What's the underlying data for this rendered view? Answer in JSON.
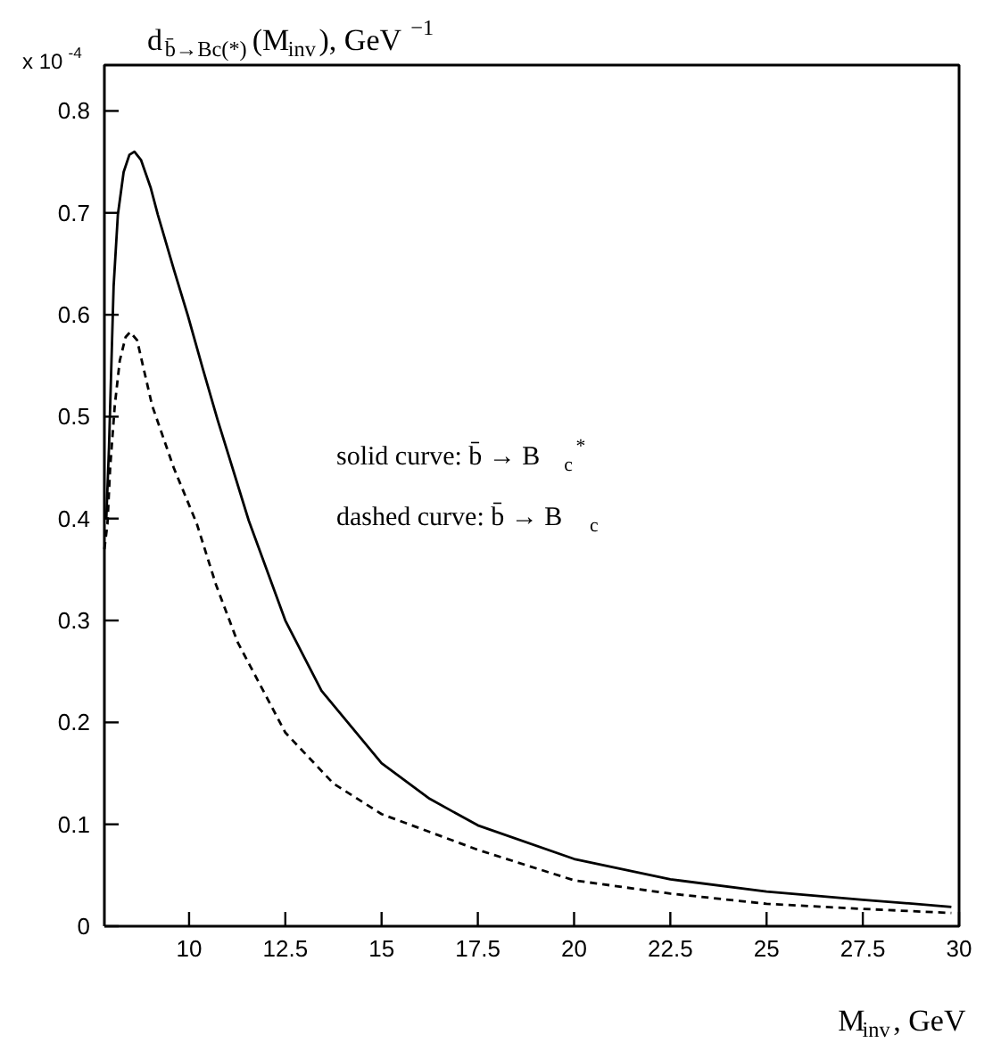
{
  "chart_data": {
    "type": "line",
    "title": "d$_{b̄→Bc(*)}$(M$_{inv}$), GeV$^{−1}$",
    "xlabel": "M$_{inv}$, GeV",
    "annotations": [
      "x 10$^{-4}$",
      "solid curve: b̄ → B$_{c}$$^{*}$",
      "dashed curve: b̄ → B$_{c}$"
    ],
    "xlim": [
      7.8,
      30
    ],
    "ylim": [
      0,
      0.845
    ],
    "xticks": [
      10,
      12.5,
      15,
      17.5,
      20,
      22.5,
      25,
      27.5,
      30
    ],
    "yticks": [
      0,
      0.1,
      0.2,
      0.3,
      0.4,
      0.5,
      0.6,
      0.7,
      0.8
    ],
    "grid": false,
    "marker": "none",
    "series": [
      {
        "color": "#000000",
        "line_style": "solid",
        "x": [
          7.85,
          7.92,
          8.04,
          8.15,
          8.3,
          8.45,
          8.58,
          8.75,
          9.0,
          9.19,
          9.6,
          9.97,
          10.35,
          10.74,
          11.15,
          11.55,
          12.5,
          13.44,
          15,
          16.25,
          17.5,
          20,
          22.5,
          25,
          27.5,
          29.8
        ],
        "values": [
          0.4,
          0.47,
          0.628,
          0.698,
          0.74,
          0.757,
          0.76,
          0.752,
          0.725,
          0.698,
          0.645,
          0.599,
          0.548,
          0.497,
          0.447,
          0.398,
          0.3,
          0.231,
          0.16,
          0.125,
          0.099,
          0.066,
          0.046,
          0.034,
          0.026,
          0.019
        ]
      },
      {
        "color": "#000000",
        "line_style": "dashed",
        "x": [
          7.8,
          7.88,
          7.95,
          8.07,
          8.2,
          8.35,
          8.47,
          8.65,
          9.04,
          9.6,
          10.2,
          10.7,
          11.27,
          12.5,
          13.75,
          15,
          17.5,
          20,
          22.5,
          25,
          27.5,
          29.8
        ],
        "values": [
          0.37,
          0.395,
          0.45,
          0.511,
          0.555,
          0.578,
          0.583,
          0.575,
          0.511,
          0.45,
          0.395,
          0.335,
          0.278,
          0.19,
          0.14,
          0.11,
          0.075,
          0.045,
          0.032,
          0.022,
          0.017,
          0.013
        ]
      }
    ]
  }
}
